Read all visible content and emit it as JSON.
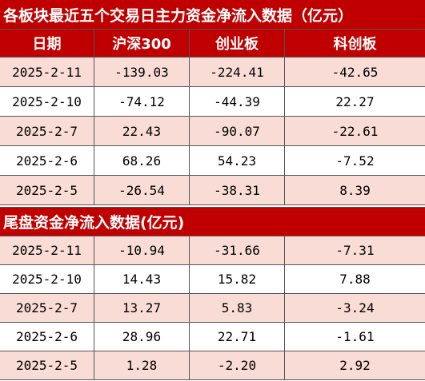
{
  "sections": [
    {
      "title": "各板块最近五个交易日主力资金净流入数据（亿元）",
      "header": [
        "日期",
        "沪深300",
        "创业板",
        "科创板"
      ],
      "rows": [
        [
          "2025-2-11",
          "-139.03",
          "-224.41",
          "-42.65"
        ],
        [
          "2025-2-10",
          "-74.12",
          "-44.39",
          "22.27"
        ],
        [
          "2025-2-7",
          "22.43",
          "-90.07",
          "-22.61"
        ],
        [
          "2025-2-6",
          "68.26",
          "54.23",
          "-7.52"
        ],
        [
          "2025-2-5",
          "-26.54",
          "-38.31",
          "8.39"
        ]
      ]
    },
    {
      "title": "尾盘资金净流入数据(亿元)",
      "rows": [
        [
          "2025-2-11",
          "-10.94",
          "-31.66",
          "-7.31"
        ],
        [
          "2025-2-10",
          "14.43",
          "15.82",
          "7.88"
        ],
        [
          "2025-2-7",
          "13.27",
          "5.83",
          "-3.24"
        ],
        [
          "2025-2-6",
          "28.96",
          "22.71",
          "-1.61"
        ],
        [
          "2025-2-5",
          "1.28",
          "-2.20",
          "2.92"
        ]
      ]
    }
  ]
}
